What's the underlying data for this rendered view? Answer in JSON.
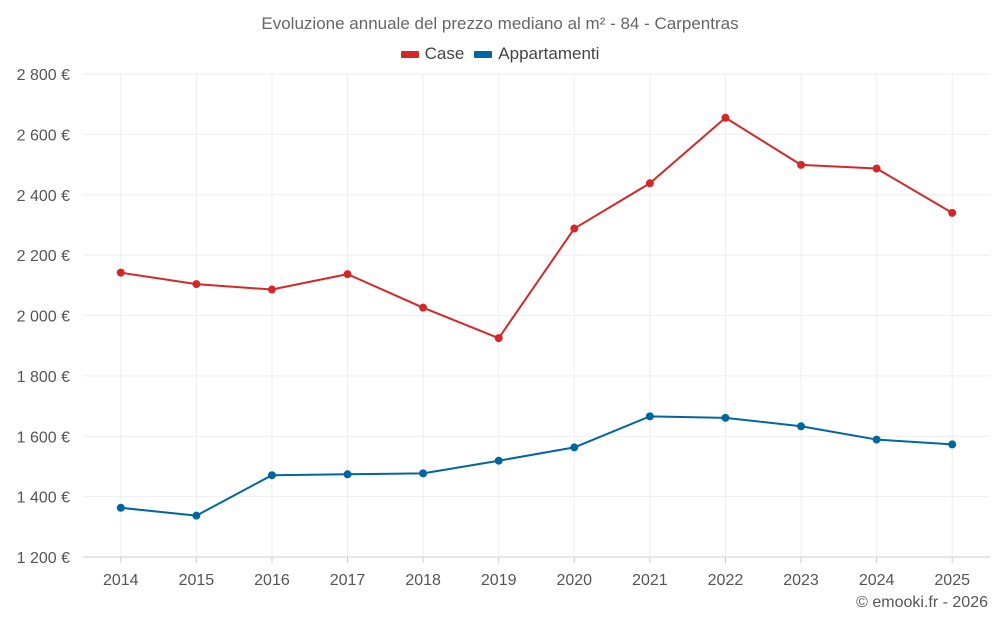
{
  "chart_data": {
    "type": "line",
    "title": "Evoluzione annuale del prezzo mediano al m² - 84 - Carpentras",
    "categories": [
      "2014",
      "2015",
      "2016",
      "2017",
      "2018",
      "2019",
      "2020",
      "2021",
      "2022",
      "2023",
      "2024",
      "2025"
    ],
    "series": [
      {
        "name": "Case",
        "color": "#d62728",
        "values": [
          2142,
          2104,
          2086,
          2137,
          2026,
          1925,
          2288,
          2438,
          2655,
          2499,
          2487,
          2340
        ]
      },
      {
        "name": "Appartamenti",
        "color": "#0066a1",
        "values": [
          1363,
          1337,
          1471,
          1474,
          1477,
          1519,
          1563,
          1666,
          1661,
          1633,
          1589,
          1573
        ]
      }
    ],
    "y_ticks": [
      "1 200 €",
      "1 400 €",
      "1 600 €",
      "1 800 €",
      "2 000 €",
      "2 200 €",
      "2 400 €",
      "2 600 €",
      "2 800 €"
    ],
    "ylim": [
      1200,
      2800
    ],
    "y_tick_values": [
      1200,
      1400,
      1600,
      1800,
      2000,
      2200,
      2400,
      2600,
      2800
    ],
    "grid": true,
    "legend_position": "top-center"
  },
  "credit": "© emooki.fr - 2026"
}
